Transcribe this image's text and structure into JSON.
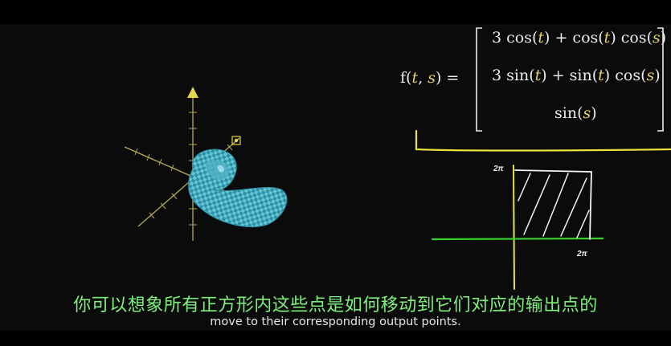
{
  "formula": {
    "lhs": "f(t, s) =",
    "rows": [
      {
        "a": "3 cos(",
        "t1": "t",
        "b": ") + cos(",
        "t2": "t",
        "c": ") cos(",
        "s": "s",
        "d": ")"
      },
      {
        "a": "3 sin(",
        "t1": "t",
        "b": ") + sin(",
        "t2": "t",
        "c": ") cos(",
        "s": "s",
        "d": ")"
      },
      {
        "a": "sin(",
        "s": "s",
        "d": ")"
      }
    ]
  },
  "sketch": {
    "y_label": "2π",
    "x_label": "2π",
    "colors": {
      "underline": "#e8e23a",
      "x_axis": "#39d12f",
      "y_axis": "#e8e23a",
      "square": "#f4f4f4"
    }
  },
  "colors": {
    "variable": "#e3d36b",
    "axes": "#b9b15c",
    "surface": "#5ec3d4"
  },
  "subtitles": {
    "chinese": "你可以想象所有正方形内这些点是如何移动到它们对应的输出点的",
    "english": "move to their corresponding output points."
  }
}
